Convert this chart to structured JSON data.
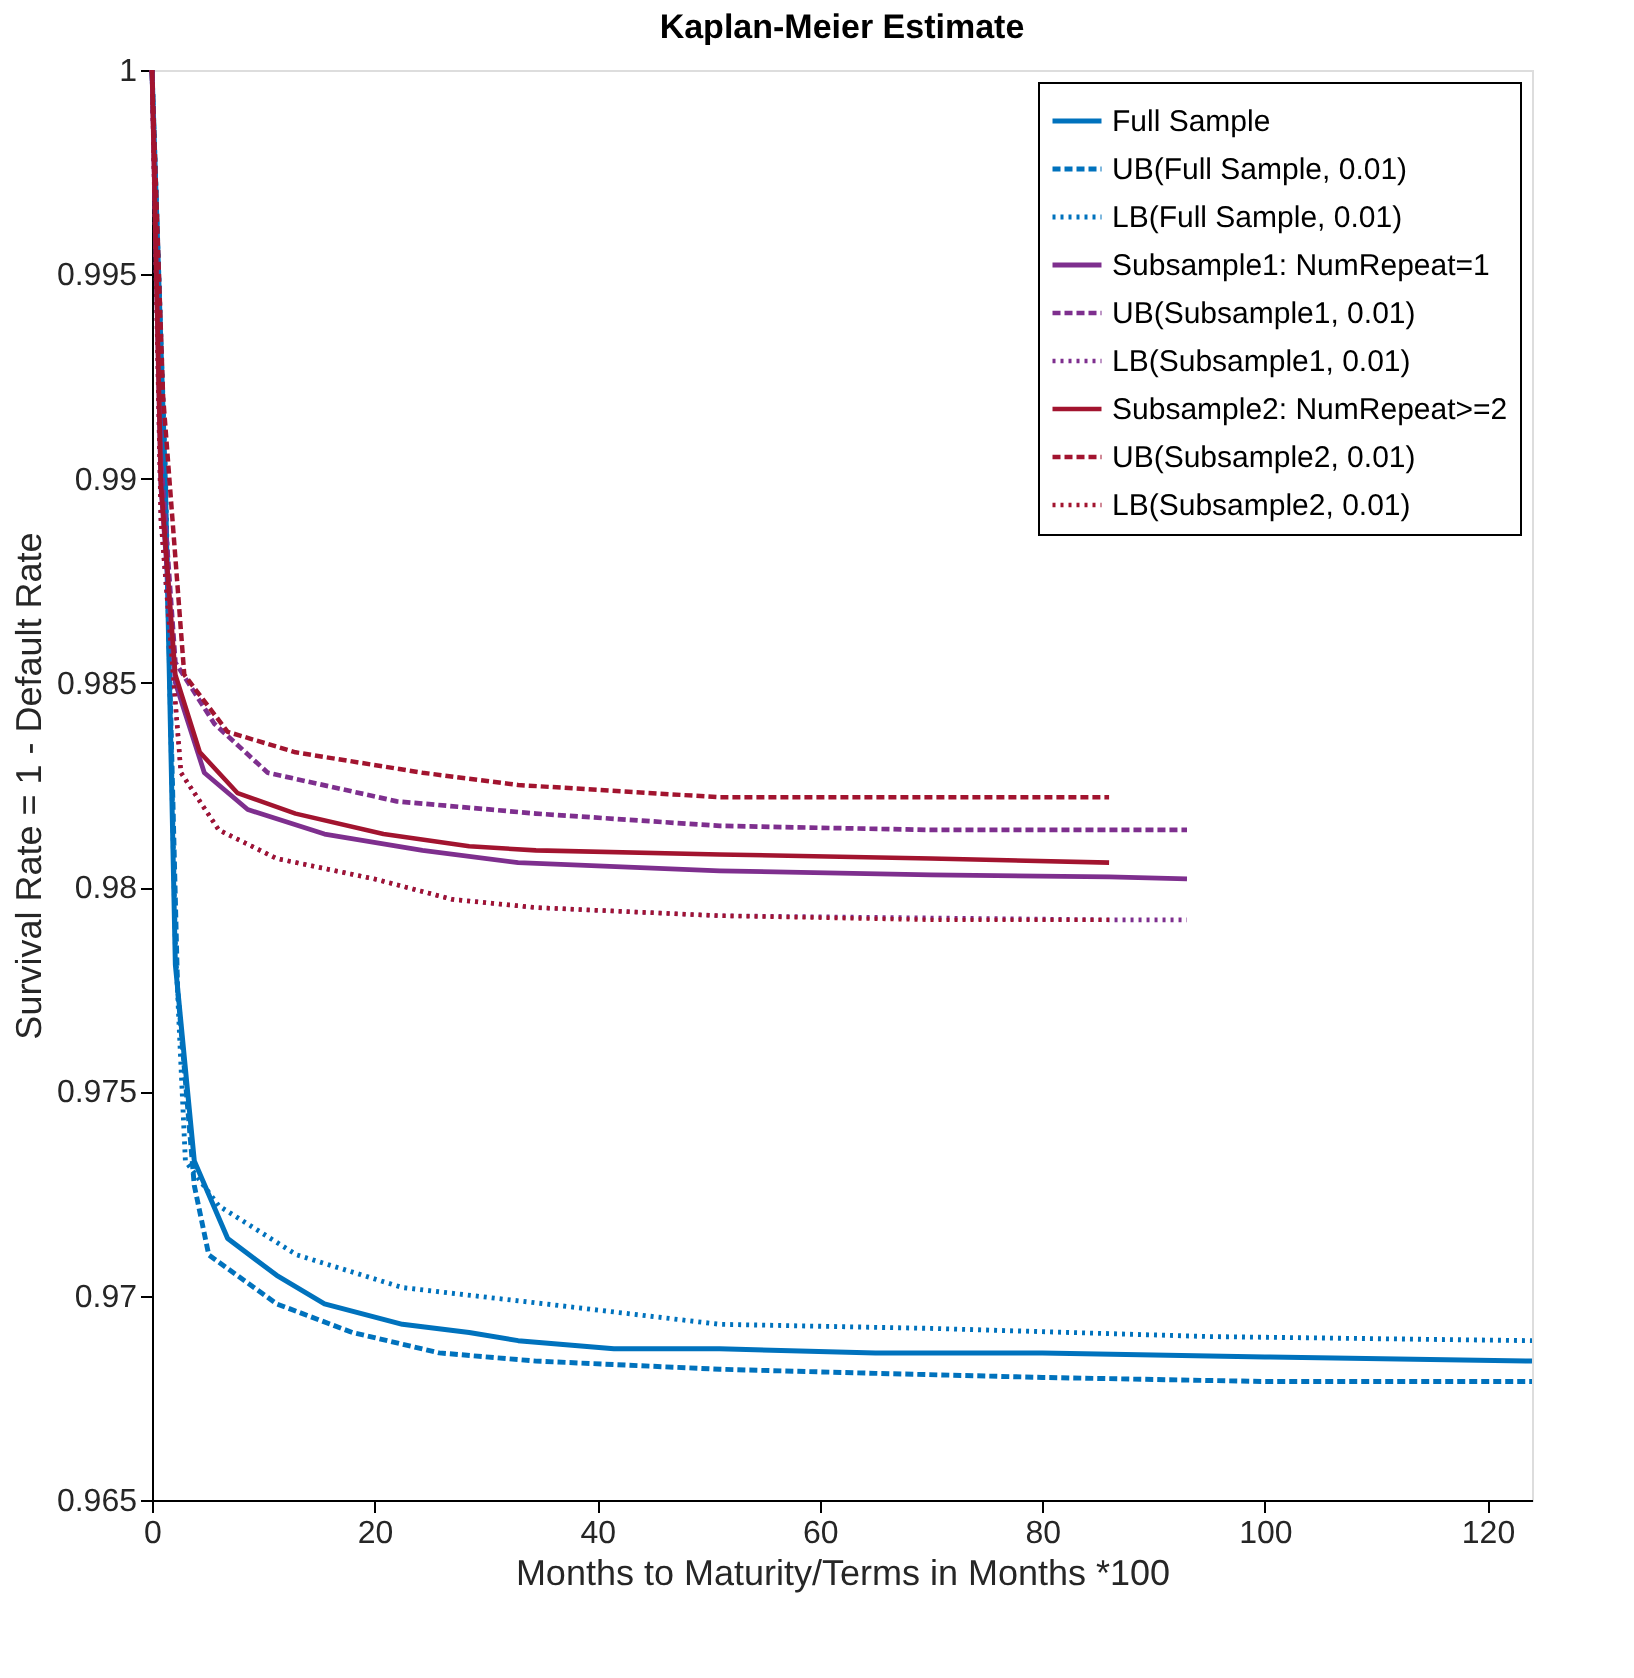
{
  "chart_data": {
    "type": "line",
    "title": "Kaplan-Meier Estimate",
    "xlabel": "Months to Maturity/Terms in Months *100",
    "ylabel": "Survival Rate = 1 - Default Rate",
    "xlim": [
      0,
      124
    ],
    "ylim": [
      0.965,
      1
    ],
    "xticks": [
      0,
      20,
      40,
      60,
      80,
      100,
      120
    ],
    "yticks": [
      0.965,
      0.97,
      0.975,
      0.98,
      0.985,
      0.99,
      0.995,
      1
    ],
    "grid": false,
    "legend": "top right",
    "marker": "none",
    "series": [
      {
        "name": "Full Sample",
        "color": "#0072bd",
        "line_style": "solid",
        "x": [
          0,
          1.2,
          2.1,
          3.8,
          6.8,
          11.2,
          15.5,
          22.5,
          28.5,
          32.9,
          41.5,
          51,
          65,
          80,
          100,
          124
        ],
        "values": [
          1,
          0.9899,
          0.9781,
          0.9733,
          0.9714,
          0.9705,
          0.9698,
          0.9693,
          0.9691,
          0.9689,
          0.9687,
          0.9687,
          0.9686,
          0.9686,
          0.9685,
          0.9684
        ]
      },
      {
        "name": "UB(Full Sample, 0.01)",
        "color": "#0072bd",
        "line_style": "dashed",
        "x": [
          0,
          1.2,
          2.3,
          3.8,
          5.1,
          11.2,
          18,
          25.8,
          34.5,
          51,
          65,
          80,
          100,
          124
        ],
        "values": [
          1,
          0.9895,
          0.9775,
          0.9727,
          0.971,
          0.9698,
          0.9691,
          0.9686,
          0.9684,
          0.9682,
          0.9681,
          0.968,
          0.9679,
          0.9679
        ]
      },
      {
        "name": "LB(Full Sample, 0.01)",
        "color": "#0072bd",
        "line_style": "dotted",
        "x": [
          0,
          1.2,
          2.1,
          3,
          6,
          13,
          22.5,
          35.3,
          51,
          70,
          95,
          124
        ],
        "values": [
          1,
          0.9902,
          0.9786,
          0.9733,
          0.9722,
          0.971,
          0.9702,
          0.9698,
          0.9693,
          0.9692,
          0.969,
          0.9689
        ]
      },
      {
        "name": "Subsample1: NumRepeat=1",
        "color": "#7e2f8e",
        "line_style": "solid",
        "x": [
          0,
          0.8,
          2.1,
          4.7,
          8.6,
          15.5,
          24.3,
          32.9,
          51,
          70,
          86,
          93
        ],
        "values": [
          1,
          0.9898,
          0.985,
          0.9828,
          0.9819,
          0.9813,
          0.9809,
          0.9806,
          0.9804,
          0.9803,
          0.98025,
          0.9802
        ]
      },
      {
        "name": "UB(Subsample1, 0.01)",
        "color": "#7e2f8e",
        "line_style": "dashed",
        "x": [
          0,
          0.8,
          2.1,
          5.6,
          10.4,
          22,
          34.5,
          51,
          70,
          93
        ],
        "values": [
          1,
          0.9905,
          0.9855,
          0.984,
          0.9828,
          0.9821,
          0.9818,
          0.9815,
          0.9814,
          0.9814
        ]
      },
      {
        "name": "LB(Subsample1, 0.01)",
        "color": "#7e2f8e",
        "line_style": "dotted",
        "x": [
          0,
          0.8,
          2.6,
          6,
          11.2,
          20,
          27,
          34.5,
          51,
          86,
          93
        ],
        "values": [
          1,
          0.989,
          0.9828,
          0.9814,
          0.9807,
          0.9802,
          0.9797,
          0.9795,
          0.9793,
          0.9792,
          0.9792
        ]
      },
      {
        "name": "Subsample2: NumRepeat>=2",
        "color": "#a2142f",
        "line_style": "solid",
        "x": [
          0,
          0.8,
          2.1,
          4.3,
          7.7,
          12.9,
          20.8,
          28.5,
          34.5,
          51,
          70,
          86
        ],
        "values": [
          1,
          0.9899,
          0.9852,
          0.9833,
          0.9823,
          0.9818,
          0.9813,
          0.981,
          0.9809,
          0.9808,
          0.9807,
          0.9806
        ]
      },
      {
        "name": "UB(Subsample2, 0.01)",
        "color": "#a2142f",
        "line_style": "dashed",
        "x": [
          0,
          1,
          2.9,
          6.8,
          12.9,
          24.3,
          32.9,
          51,
          70,
          86
        ],
        "values": [
          1,
          0.992,
          0.9852,
          0.9838,
          0.9833,
          0.9828,
          0.9825,
          0.9822,
          0.9822,
          0.9822
        ]
      },
      {
        "name": "LB(Subsample2, 0.01)",
        "color": "#a2142f",
        "line_style": "dotted",
        "x": [
          0,
          0.8,
          2.6,
          6,
          11.2,
          20,
          27,
          34.5,
          51,
          70,
          86
        ],
        "values": [
          1,
          0.989,
          0.9828,
          0.9814,
          0.9807,
          0.9802,
          0.9797,
          0.9795,
          0.9793,
          0.9792,
          0.9792
        ]
      }
    ]
  }
}
